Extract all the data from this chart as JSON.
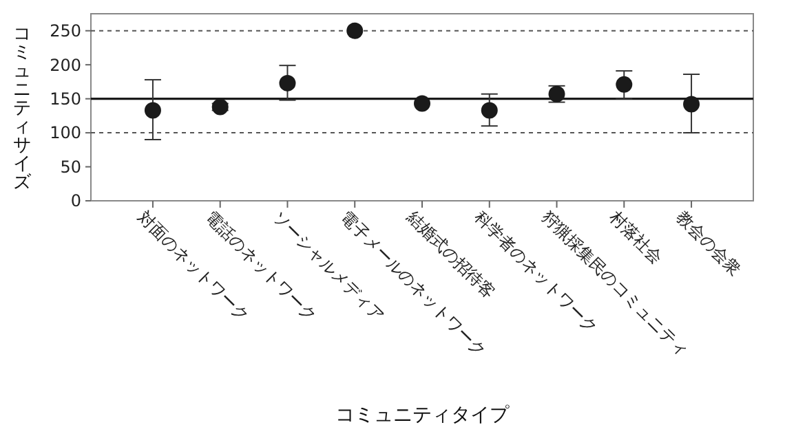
{
  "chart_data": {
    "type": "scatter",
    "xlabel": "コミュニティタイプ",
    "ylabel": "コミュニティサイズ",
    "categories": [
      "対面のネットワーク",
      "電話のネットワーク",
      "ソーシャルメディア",
      "電子メールのネットワーク",
      "結婚式の招待客",
      "科学者のネットワーク",
      "狩猟採集民のコミュニティ",
      "村落社会",
      "教会の会衆"
    ],
    "values": [
      133,
      138,
      173,
      250,
      143,
      133,
      157,
      171,
      142
    ],
    "errors": [
      [
        90,
        178
      ],
      [
        133,
        143
      ],
      [
        148,
        199
      ],
      null,
      null,
      [
        110,
        157
      ],
      [
        145,
        169
      ],
      [
        150,
        191
      ],
      [
        100,
        186
      ]
    ],
    "color": "#1a1a1a",
    "marker": "circle",
    "ylim": [
      0,
      275
    ],
    "yticks": [
      0,
      50,
      100,
      150,
      200,
      250
    ],
    "grid": false,
    "ref_lines": [
      {
        "axis": "y",
        "value": 150,
        "line_style": "solid",
        "color": "#1a1a1a"
      },
      {
        "axis": "y",
        "value": 100,
        "line_style": "dashed",
        "color": "#555555"
      },
      {
        "axis": "y",
        "value": 250,
        "line_style": "dashed",
        "color": "#555555"
      }
    ]
  }
}
